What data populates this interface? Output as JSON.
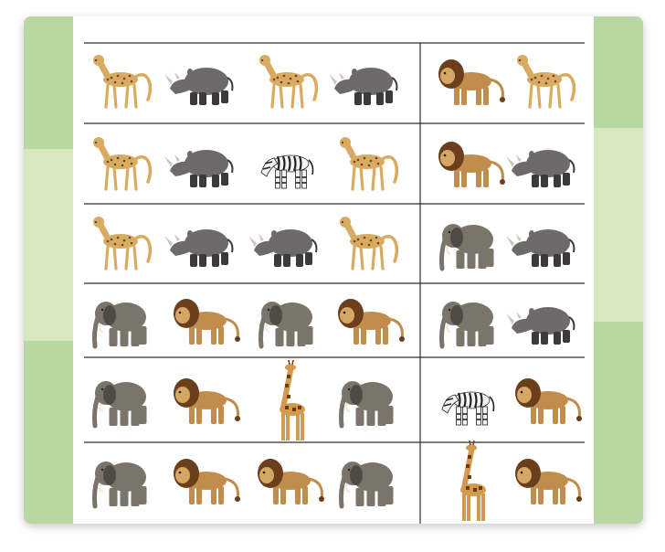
{
  "worksheet": {
    "type": "animal-pattern-worksheet",
    "colors": {
      "border_green": "#b8d7a1",
      "border_light": "#d7e8bf",
      "grid_line": "#2f2f2f",
      "sheet": "#ffffff"
    },
    "rows": [
      {
        "sequence": [
          "cheetah",
          "rhino",
          "cheetah",
          "rhino"
        ],
        "answer": [
          "lion",
          "cheetah"
        ]
      },
      {
        "sequence": [
          "cheetah",
          "rhino",
          "zebra",
          "cheetah"
        ],
        "answer": [
          "lion",
          "rhino"
        ]
      },
      {
        "sequence": [
          "cheetah",
          "rhino",
          "rhino",
          "cheetah"
        ],
        "answer": [
          "elephant",
          "rhino"
        ]
      },
      {
        "sequence": [
          "elephant",
          "lion",
          "elephant",
          "lion"
        ],
        "answer": [
          "elephant",
          "rhino"
        ]
      },
      {
        "sequence": [
          "elephant",
          "lion",
          "giraffe",
          "elephant"
        ],
        "answer": [
          "zebra",
          "lion"
        ]
      },
      {
        "sequence": [
          "elephant",
          "lion",
          "lion",
          "elephant"
        ],
        "answer": [
          "giraffe",
          "lion"
        ]
      }
    ]
  }
}
